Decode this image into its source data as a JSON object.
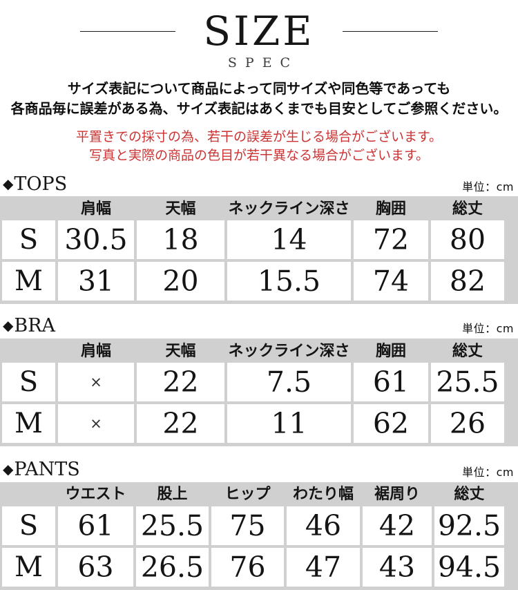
{
  "colors": {
    "table_bg": "#d0d0d0",
    "cell_bg": "#ffffff",
    "text": "#1a1a1a",
    "notice_red": "#cc3333"
  },
  "header": {
    "title": "SIZE",
    "subtitle": "SPEC",
    "intro_line1": "サイズ表記について商品によって同サイズや同色等であっても",
    "intro_line2": "各商品毎に誤差がある為、サイズ表記はあくまでも目安としてご参照ください。",
    "notice_line1": "平置きでの採寸の為、若干の誤差が生じる場合がございます。",
    "notice_line2": "写真と実際の商品の色目が若干異なる場合がございます。"
  },
  "sections": {
    "tops": {
      "marker": "◆",
      "label": "TOPS",
      "unit_label": "単位：cm",
      "columns": [
        "肩幅",
        "天幅",
        "ネックライン深さ",
        "胸囲",
        "総丈"
      ],
      "rows": [
        [
          "S",
          "30.5",
          "18",
          "14",
          "72",
          "80"
        ],
        [
          "M",
          "31",
          "20",
          "15.5",
          "74",
          "82"
        ]
      ]
    },
    "bra": {
      "marker": "◆",
      "label": "BRA",
      "unit_label": "単位：cm",
      "columns": [
        "肩幅",
        "天幅",
        "ネックライン深さ",
        "胸囲",
        "総丈"
      ],
      "rows": [
        [
          "S",
          "×",
          "22",
          "7.5",
          "61",
          "25.5"
        ],
        [
          "M",
          "×",
          "22",
          "11",
          "62",
          "26"
        ]
      ]
    },
    "pants": {
      "marker": "◆",
      "label": "PANTS",
      "unit_label": "単位：cm",
      "columns": [
        "ウエスト",
        "股上",
        "ヒップ",
        "わたり幅",
        "裾周り",
        "総丈"
      ],
      "rows": [
        [
          "S",
          "61",
          "25.5",
          "75",
          "46",
          "42",
          "92.5"
        ],
        [
          "M",
          "63",
          "26.5",
          "76",
          "47",
          "43",
          "94.5"
        ]
      ]
    }
  }
}
